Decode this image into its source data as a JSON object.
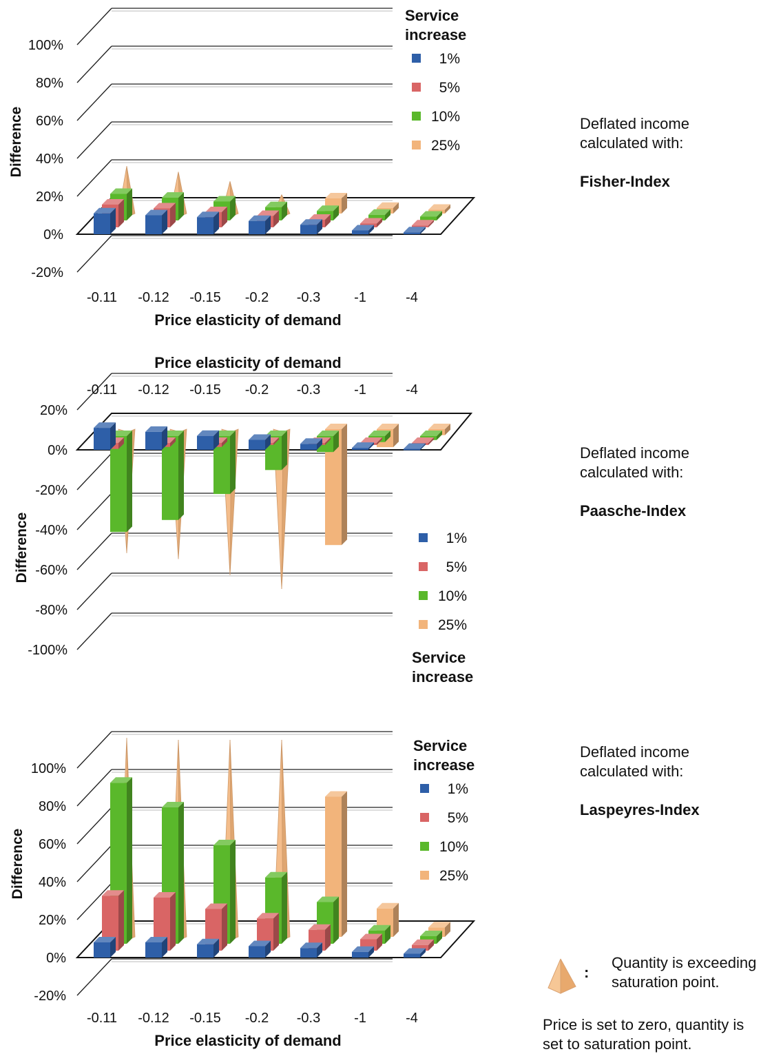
{
  "chart_data": [
    {
      "type": "bar",
      "index_label": "Fisher-Index",
      "note_label": "Deflated income calculated with:",
      "xlabel": "Price elasticity of demand",
      "ylabel": "Difference",
      "ylim": [
        -20,
        100
      ],
      "yticks": [
        "-20%",
        "0%",
        "20%",
        "40%",
        "60%",
        "80%",
        "100%"
      ],
      "legend_title": "Service increase",
      "legend_position": "top-right",
      "categories": [
        "-0.11",
        "-0.12",
        "-0.15",
        "-0.2",
        "-0.3",
        "-1",
        "-4"
      ],
      "series": [
        {
          "name": "1%",
          "color": "#2e5fa8",
          "values": [
            11,
            10,
            9,
            7,
            5,
            2,
            1
          ],
          "shapes": [
            "bar",
            "bar",
            "bar",
            "bar",
            "bar",
            "bar",
            "bar"
          ]
        },
        {
          "name": "5%",
          "color": "#d96565",
          "values": [
            12,
            10,
            8,
            6,
            4,
            2,
            1
          ],
          "shapes": [
            "bar",
            "bar",
            "bar",
            "bar",
            "bar",
            "bar",
            "bar"
          ]
        },
        {
          "name": "10%",
          "color": "#5ab82b",
          "values": [
            14,
            12,
            10,
            7,
            5,
            3,
            2
          ],
          "shapes": [
            "bar",
            "bar",
            "bar",
            "bar",
            "bar",
            "bar",
            "bar"
          ]
        },
        {
          "name": "25%",
          "color": "#f2b47b",
          "values": [
            25,
            22,
            17,
            10,
            8,
            3,
            2
          ],
          "shapes": [
            "cone",
            "cone",
            "cone",
            "cone",
            "bar",
            "bar",
            "bar"
          ]
        }
      ]
    },
    {
      "type": "bar",
      "index_label": "Paasche-Index",
      "note_label": "Deflated income calculated with:",
      "xlabel": "Price elasticity of demand",
      "ylabel": "Difference",
      "ylim": [
        -100,
        20
      ],
      "yticks": [
        "-100%",
        "-80%",
        "-60%",
        "-40%",
        "-20%",
        "0%",
        "20%"
      ],
      "legend_title": "Service increase",
      "legend_position": "bottom-right",
      "categories": [
        "-0.11",
        "-0.12",
        "-0.15",
        "-0.2",
        "-0.3",
        "-1",
        "-4"
      ],
      "series": [
        {
          "name": "1%",
          "color": "#2e5fa8",
          "values": [
            11,
            9,
            7,
            5,
            3,
            1,
            0.5
          ],
          "shapes": [
            "bar",
            "bar",
            "bar",
            "bar",
            "bar",
            "bar",
            "bar"
          ]
        },
        {
          "name": "5%",
          "color": "#d96565",
          "values": [
            -3,
            -2,
            -2,
            -1,
            -1,
            -1,
            -1
          ],
          "shapes": [
            "bar",
            "bar",
            "bar",
            "bar",
            "bar",
            "bar",
            "bar"
          ]
        },
        {
          "name": "10%",
          "color": "#5ab82b",
          "values": [
            -48,
            -42,
            -29,
            -17,
            -8,
            -3,
            -2
          ],
          "shapes": [
            "bar",
            "bar",
            "bar",
            "bar",
            "bar",
            "bar",
            "bar"
          ]
        },
        {
          "name": "25%",
          "color": "#f2b47b",
          "values": [
            -62,
            -65,
            -73,
            -80,
            -58,
            -9,
            -3
          ],
          "shapes": [
            "cone",
            "cone",
            "cone",
            "cone",
            "bar",
            "bar",
            "bar"
          ]
        }
      ]
    },
    {
      "type": "bar",
      "index_label": "Laspeyres-Index",
      "note_label": "Deflated income calculated with:",
      "xlabel": "Price elasticity of demand",
      "ylabel": "Difference",
      "ylim": [
        -20,
        100
      ],
      "yticks": [
        "-20%",
        "0%",
        "20%",
        "40%",
        "60%",
        "80%",
        "100%"
      ],
      "legend_title": "Service increase",
      "legend_position": "top-right",
      "categories": [
        "-0.11",
        "-0.12",
        "-0.15",
        "-0.2",
        "-0.3",
        "-1",
        "-4"
      ],
      "series": [
        {
          "name": "1%",
          "color": "#2e5fa8",
          "values": [
            8,
            8,
            7,
            6,
            5,
            3,
            2
          ],
          "shapes": [
            "bar",
            "bar",
            "bar",
            "bar",
            "bar",
            "bar",
            "bar"
          ]
        },
        {
          "name": "5%",
          "color": "#d96565",
          "values": [
            29,
            28,
            22,
            17,
            11,
            6,
            3
          ],
          "shapes": [
            "bar",
            "bar",
            "bar",
            "bar",
            "bar",
            "bar",
            "bar"
          ]
        },
        {
          "name": "10%",
          "color": "#5ab82b",
          "values": [
            85,
            72,
            52,
            35,
            22,
            7,
            4
          ],
          "shapes": [
            "bar",
            "bar",
            "bar",
            "bar",
            "bar",
            "bar",
            "bar"
          ]
        },
        {
          "name": "25%",
          "color": "#f2b47b",
          "values": [
            105,
            104,
            104,
            104,
            74,
            15,
            5
          ],
          "shapes": [
            "cone",
            "cone",
            "cone",
            "cone",
            "bar",
            "bar",
            "bar"
          ]
        }
      ]
    }
  ],
  "footnote": {
    "cone_meaning": "Quantity is exceeding saturation point.",
    "explanation": "Price is set to zero, quantity is set to saturation point."
  }
}
